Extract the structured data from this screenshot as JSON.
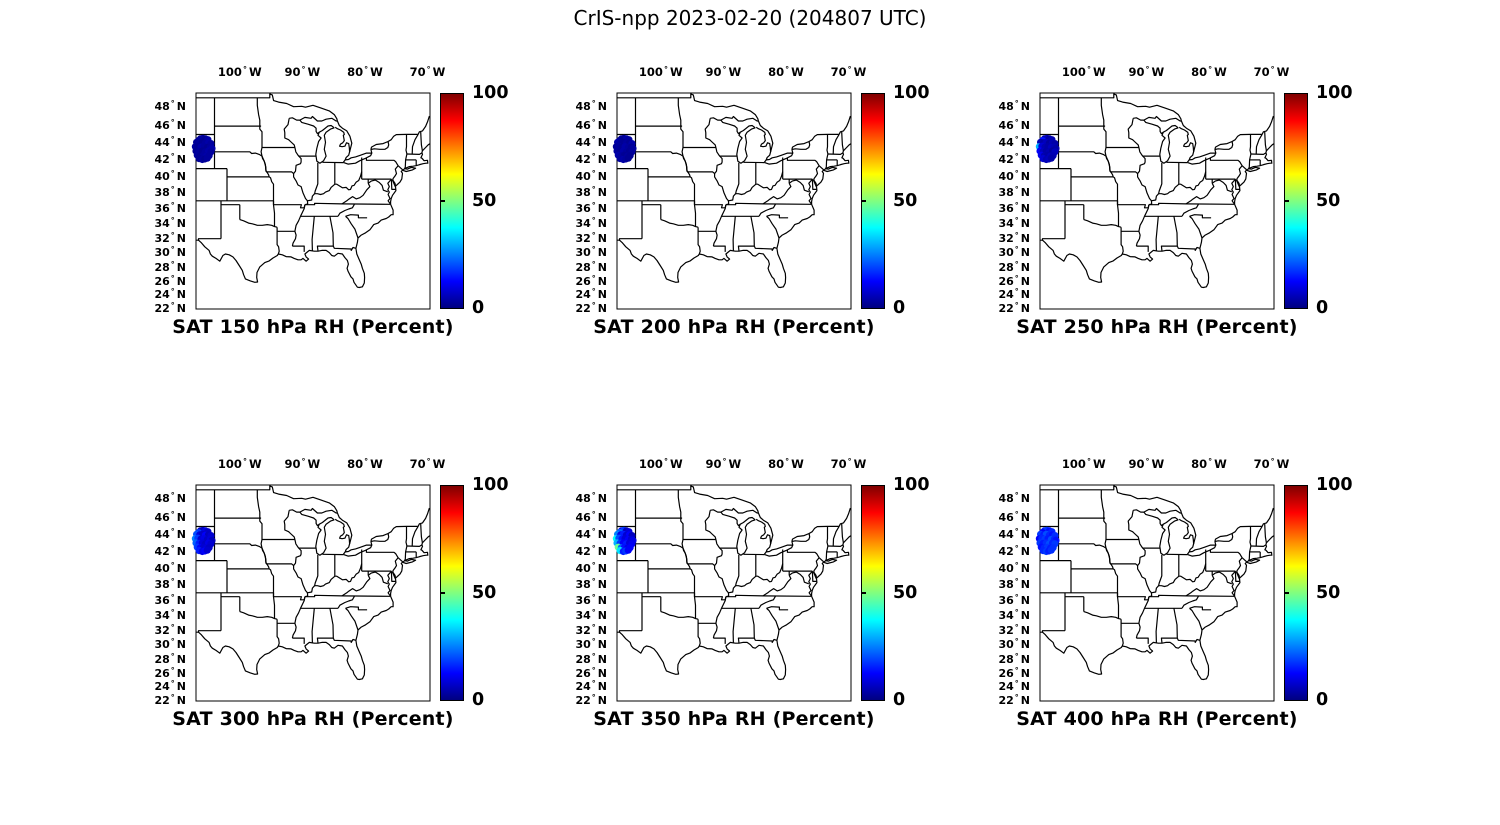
{
  "figure_title": "CrIS-npp 2023-02-20 (204807 UTC)",
  "axes": {
    "lon_ticks_deg_w": [
      100,
      90,
      80,
      70
    ],
    "lat_ticks_deg_n": [
      48,
      46,
      44,
      42,
      40,
      38,
      36,
      34,
      32,
      30,
      28,
      26,
      24,
      22
    ],
    "lon_hemisphere": "W",
    "lat_hemisphere": "N"
  },
  "colorbar": {
    "min": 0,
    "max": 100,
    "tick_labels": [
      "100",
      "50",
      "0"
    ],
    "units": "Percent",
    "jet_stops": [
      [
        0,
        "#000080"
      ],
      [
        12.5,
        "#0000ff"
      ],
      [
        37.5,
        "#00ffff"
      ],
      [
        50,
        "#80ff80"
      ],
      [
        62.5,
        "#ffff00"
      ],
      [
        87.5,
        "#ff0000"
      ],
      [
        100,
        "#800000"
      ]
    ]
  },
  "colors": {
    "outline": "#000000",
    "background": "#ffffff",
    "scatter_low_rh": "#000094"
  },
  "chart_data": {
    "type": "scatter",
    "title": "CrIS-npp 2023-02-20 (204807 UTC)",
    "projection": "mercator",
    "lon_range": [
      -107.0,
      -69.6
    ],
    "lat_range": [
      22.0,
      49.5
    ],
    "colormap": "jet",
    "color_range": [
      0,
      100
    ],
    "value_name": "Relative Humidity (Percent)",
    "grid": false,
    "legend": "colorbar-right",
    "obs_cluster_center_lon_lat": [
      -105.7,
      43.3
    ],
    "obs_locations_lon_lat": [
      [
        -106.3,
        44.5
      ],
      [
        -105.9,
        44.55
      ],
      [
        -105.5,
        44.5
      ],
      [
        -105.1,
        44.4
      ],
      [
        -106.6,
        44.3
      ],
      [
        -106.9,
        44.1
      ],
      [
        -106.4,
        44.05
      ],
      [
        -106.0,
        44.1
      ],
      [
        -105.5,
        44.0
      ],
      [
        -105.0,
        44.05
      ],
      [
        -104.6,
        43.95
      ],
      [
        -107.1,
        43.6
      ],
      [
        -106.7,
        43.65
      ],
      [
        -106.2,
        43.55
      ],
      [
        -105.7,
        43.6
      ],
      [
        -105.2,
        43.5
      ],
      [
        -104.7,
        43.55
      ],
      [
        -104.45,
        43.4
      ],
      [
        -107.0,
        43.1
      ],
      [
        -106.5,
        43.05
      ],
      [
        -106.0,
        43.1
      ],
      [
        -105.5,
        43.0
      ],
      [
        -105.0,
        43.1
      ],
      [
        -104.6,
        43.0
      ],
      [
        -106.8,
        42.6
      ],
      [
        -106.3,
        42.55
      ],
      [
        -105.8,
        42.6
      ],
      [
        -105.3,
        42.5
      ],
      [
        -104.9,
        42.55
      ],
      [
        -106.5,
        42.2
      ],
      [
        -106.0,
        42.1
      ],
      [
        -105.6,
        42.15
      ],
      [
        -105.2,
        42.25
      ]
    ],
    "panels": [
      {
        "label": "SAT 150 hPa RH (Percent)",
        "level_hPa": 150,
        "rh": [
          2,
          3,
          2,
          4,
          3,
          2,
          3,
          2,
          3,
          4,
          3,
          3,
          2,
          4,
          3,
          2,
          3,
          4,
          2,
          3,
          2,
          3,
          4,
          3,
          3,
          2,
          3,
          4,
          3,
          2,
          3,
          2,
          3
        ]
      },
      {
        "label": "SAT 200 hPa RH (Percent)",
        "level_hPa": 200,
        "rh": [
          3,
          2,
          4,
          3,
          2,
          4,
          3,
          2,
          3,
          2,
          4,
          2,
          3,
          2,
          4,
          3,
          2,
          3,
          3,
          2,
          4,
          3,
          2,
          3,
          4,
          3,
          2,
          3,
          2,
          3,
          4,
          3,
          2
        ]
      },
      {
        "label": "SAT 250 hPa RH (Percent)",
        "level_hPa": 250,
        "rh": [
          4,
          6,
          3,
          5,
          14,
          5,
          4,
          6,
          3,
          5,
          4,
          30,
          8,
          5,
          4,
          6,
          5,
          4,
          12,
          6,
          4,
          5,
          3,
          6,
          10,
          5,
          4,
          6,
          5,
          8,
          5,
          6,
          4
        ]
      },
      {
        "label": "SAT 300 hPa RH (Percent)",
        "level_hPa": 300,
        "rh": [
          8,
          6,
          10,
          7,
          18,
          20,
          9,
          7,
          12,
          6,
          8,
          25,
          18,
          8,
          10,
          7,
          9,
          6,
          22,
          15,
          9,
          7,
          10,
          8,
          18,
          12,
          8,
          9,
          7,
          15,
          10,
          12,
          8
        ]
      },
      {
        "label": "SAT 350 hPa RH (Percent)",
        "level_hPa": 350,
        "rh": [
          12,
          18,
          6,
          9,
          22,
          25,
          10,
          15,
          8,
          12,
          6,
          38,
          20,
          14,
          9,
          12,
          8,
          10,
          30,
          18,
          12,
          15,
          9,
          11,
          48,
          22,
          14,
          10,
          12,
          35,
          15,
          18,
          12
        ]
      },
      {
        "label": "SAT 400 hPa RH (Percent)",
        "level_hPa": 400,
        "rh": [
          15,
          18,
          14,
          16,
          12,
          18,
          15,
          20,
          16,
          14,
          17,
          12,
          16,
          18,
          15,
          20,
          16,
          14,
          18,
          15,
          17,
          20,
          16,
          18,
          14,
          16,
          18,
          15,
          17,
          16,
          18,
          15,
          17
        ]
      }
    ]
  }
}
